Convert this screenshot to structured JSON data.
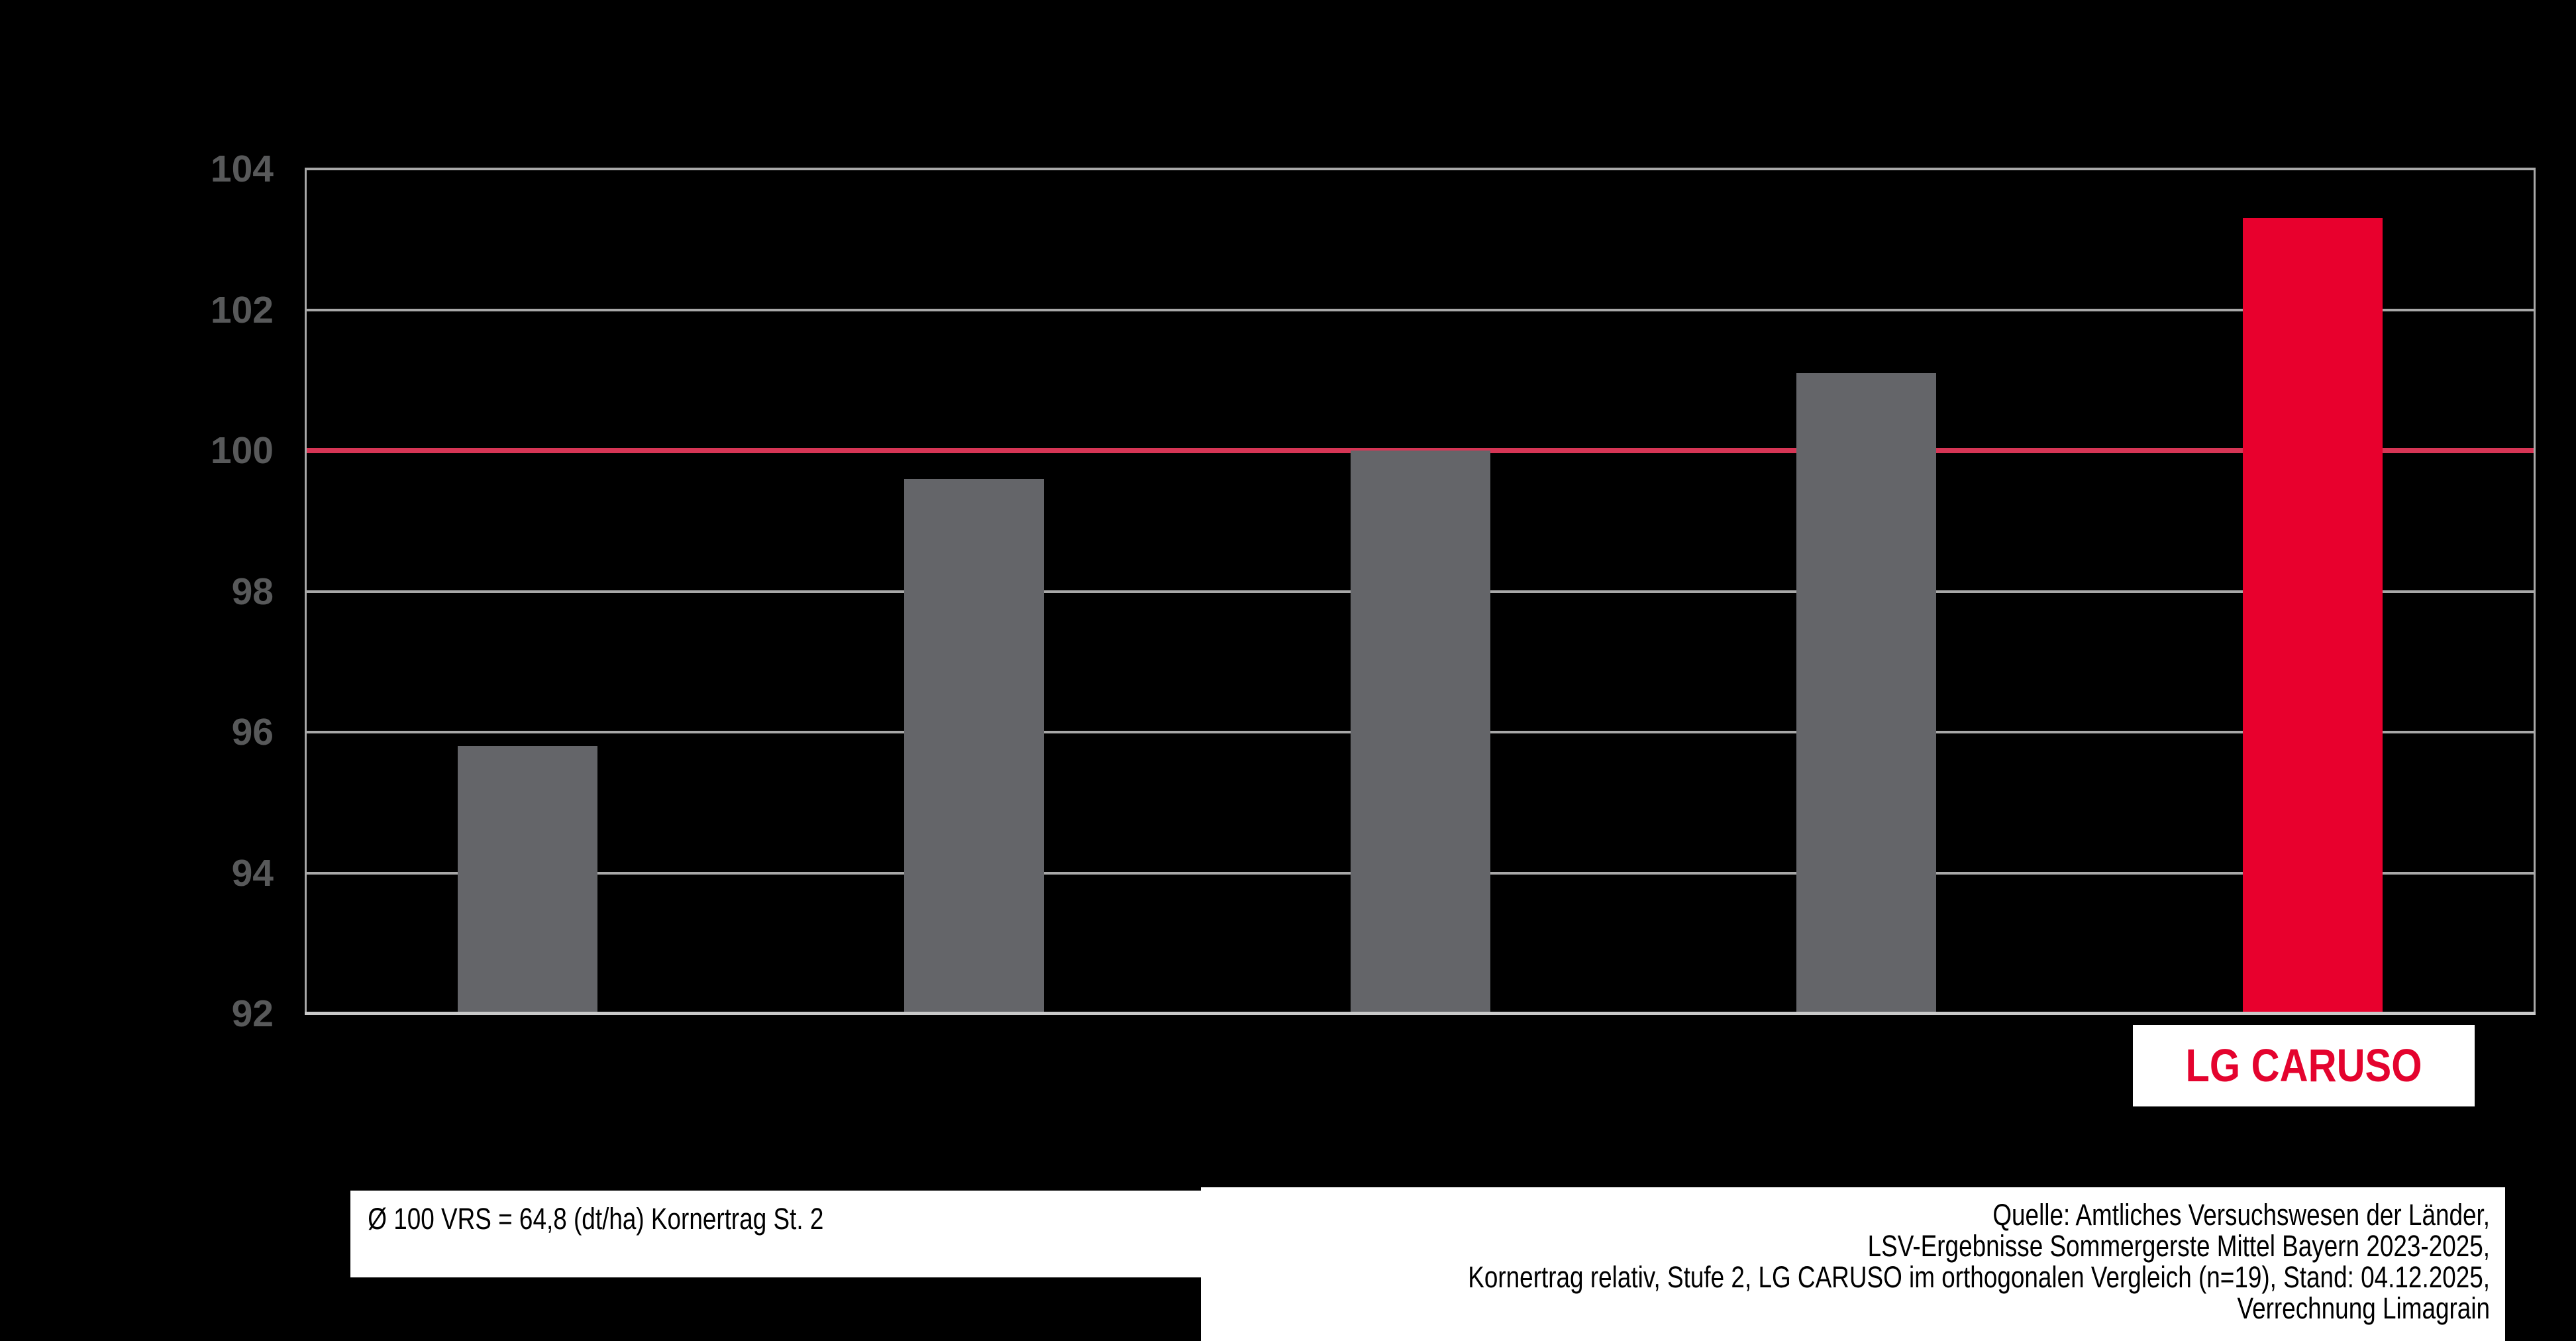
{
  "chart_data": {
    "type": "bar",
    "title": "",
    "xlabel": "",
    "ylabel": "",
    "categories": [
      "",
      "",
      "",
      "",
      "LG CARUSO"
    ],
    "values": [
      95.8,
      99.6,
      100.0,
      101.1,
      103.3
    ],
    "highlight_index": 4,
    "ylim": [
      92,
      104
    ],
    "yticks": [
      92,
      94,
      96,
      98,
      100,
      102,
      104
    ],
    "reference_line": 100,
    "grid": true,
    "legend_position": "none",
    "colors": {
      "background": "#000000",
      "bar": "#646569",
      "highlight_bar": "#e8002d",
      "reference_line": "#d63555",
      "gridline": "#a8a8a8",
      "x_axis_line": "#c9c9c9",
      "y_axis_line": "#a8a8a8",
      "tick_label": "#58595a",
      "highlight_label_text": "#e4032e",
      "label_box_background": "#ffffff"
    }
  },
  "footnote": {
    "text": "Ø 100 VRS = 64,8 (dt/ha) Kornertrag St. 2"
  },
  "source": {
    "lines": [
      "Quelle: Amtliches Versuchswesen der Länder,",
      "LSV-Ergebnisse Sommergerste Mittel Bayern 2023-2025,",
      "Kornertrag relativ, Stufe 2, LG CARUSO im orthogonalen Vergleich (n=19), Stand: 04.12.2025,",
      "Verrechnung Limagrain"
    ]
  }
}
